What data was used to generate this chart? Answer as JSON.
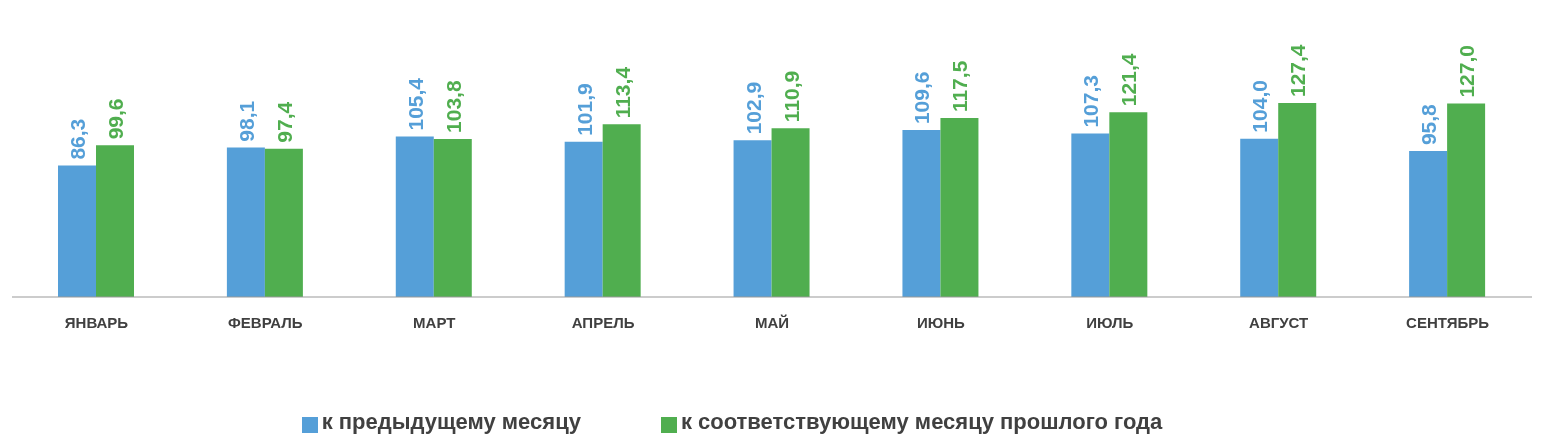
{
  "chart_data": {
    "type": "bar",
    "categories": [
      "ЯНВАРЬ",
      "ФЕВРАЛЬ",
      "МАРТ",
      "АПРЕЛЬ",
      "МАЙ",
      "ИЮНЬ",
      "ИЮЛЬ",
      "АВГУСТ",
      "СЕНТЯБРЬ"
    ],
    "series": [
      {
        "name": "к предыдущему месяцу",
        "color": "#559fd8",
        "values": [
          86.3,
          98.1,
          105.4,
          101.9,
          102.9,
          109.6,
          107.3,
          104.0,
          95.8
        ],
        "value_labels": [
          "86,3",
          "98,1",
          "105,4",
          "101,9",
          "102,9",
          "109,6",
          "107,3",
          "104,0",
          "95,8"
        ]
      },
      {
        "name": "к соответствующему месяцу прошлого года",
        "color": "#50ae4f",
        "values": [
          99.6,
          97.4,
          103.8,
          113.4,
          110.9,
          117.5,
          121.4,
          127.4,
          127.0
        ],
        "value_labels": [
          "99,6",
          "97,4",
          "103,8",
          "113,4",
          "110,9",
          "117,5",
          "121,4",
          "127,4",
          "127,0"
        ]
      }
    ],
    "grid": false,
    "legend": "bottom"
  }
}
